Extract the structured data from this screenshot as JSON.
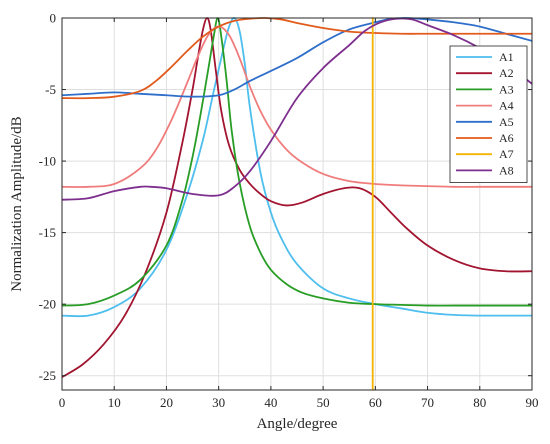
{
  "chart_data": {
    "type": "line",
    "title": "",
    "xlabel": "Angle/degree",
    "ylabel": "Normalization Amplitude/dB",
    "xlim": [
      0,
      90
    ],
    "ylim": [
      -26,
      0
    ],
    "xticks": [
      0,
      10,
      20,
      30,
      40,
      50,
      60,
      70,
      80,
      90
    ],
    "yticks": [
      0,
      -5,
      -10,
      -15,
      -20,
      -25
    ],
    "grid": true,
    "legend_position": "top-right",
    "series": [
      {
        "name": "A1",
        "color": "#4DBEEE",
        "x": [
          0,
          5,
          10,
          15,
          20,
          24,
          27,
          29,
          31,
          32,
          33,
          34,
          35,
          36,
          38,
          40,
          42,
          45,
          50,
          55,
          60,
          65,
          70,
          75,
          80,
          85,
          90
        ],
        "y": [
          -20.8,
          -20.8,
          -20.2,
          -18.9,
          -16.2,
          -12.3,
          -8.5,
          -5.2,
          -2.0,
          -0.6,
          0.0,
          -0.9,
          -3.2,
          -6.3,
          -10.8,
          -13.6,
          -15.4,
          -17.2,
          -18.9,
          -19.6,
          -20.0,
          -20.3,
          -20.6,
          -20.75,
          -20.8,
          -20.8,
          -20.8
        ]
      },
      {
        "name": "A2",
        "color": "#A2142F",
        "x": [
          0,
          4,
          8,
          12,
          16,
          20,
          23,
          25,
          26,
          27,
          27.8,
          28.5,
          29.5,
          30.5,
          32,
          34,
          36,
          38,
          40,
          43,
          46,
          50,
          54,
          57,
          60,
          63,
          66,
          70,
          75,
          80,
          85,
          90
        ],
        "y": [
          -25.1,
          -24.2,
          -22.8,
          -20.8,
          -17.8,
          -13.6,
          -8.8,
          -5.0,
          -2.8,
          -0.8,
          0.0,
          -0.9,
          -3.8,
          -6.5,
          -8.9,
          -10.6,
          -11.6,
          -12.3,
          -12.8,
          -13.1,
          -12.9,
          -12.3,
          -11.9,
          -11.9,
          -12.5,
          -13.6,
          -14.7,
          -15.9,
          -16.9,
          -17.5,
          -17.7,
          -17.7
        ]
      },
      {
        "name": "A3",
        "color": "#289D26",
        "x": [
          0,
          5,
          10,
          15,
          20,
          23,
          25,
          26.5,
          28,
          29,
          29.8,
          30.5,
          31.5,
          32.5,
          34,
          36,
          38,
          40,
          43,
          46,
          50,
          55,
          60,
          65,
          70,
          75,
          80,
          85,
          90
        ],
        "y": [
          -20.1,
          -20.0,
          -19.4,
          -18.3,
          -15.9,
          -12.8,
          -9.7,
          -6.8,
          -3.6,
          -1.4,
          0.0,
          -1.3,
          -4.3,
          -7.9,
          -11.5,
          -14.6,
          -16.4,
          -17.6,
          -18.6,
          -19.2,
          -19.6,
          -19.9,
          -20.0,
          -20.05,
          -20.1,
          -20.1,
          -20.1,
          -20.1,
          -20.1
        ]
      },
      {
        "name": "A4",
        "color": "#F07C7C",
        "x": [
          0,
          5,
          10,
          15,
          18,
          21,
          24,
          26,
          28,
          30,
          32,
          34,
          36,
          38,
          40,
          43,
          46,
          50,
          55,
          60,
          65,
          70,
          75,
          80,
          85,
          90
        ],
        "y": [
          -11.8,
          -11.8,
          -11.6,
          -10.5,
          -9.2,
          -7.1,
          -4.5,
          -2.7,
          -1.2,
          -0.6,
          -1.2,
          -2.8,
          -4.8,
          -6.5,
          -7.8,
          -9.2,
          -10.1,
          -10.9,
          -11.4,
          -11.6,
          -11.7,
          -11.75,
          -11.8,
          -11.8,
          -11.8,
          -11.8
        ]
      },
      {
        "name": "A5",
        "color": "#2F6FCA",
        "x": [
          0,
          5,
          10,
          15,
          20,
          25,
          30,
          33,
          36,
          40,
          45,
          50,
          55,
          60,
          63,
          66,
          70,
          75,
          80,
          85,
          90
        ],
        "y": [
          -5.4,
          -5.3,
          -5.2,
          -5.3,
          -5.4,
          -5.5,
          -5.4,
          -5.0,
          -4.4,
          -3.7,
          -2.8,
          -1.7,
          -0.8,
          -0.3,
          -0.05,
          0.0,
          -0.1,
          -0.3,
          -0.6,
          -1.1,
          -1.6
        ]
      },
      {
        "name": "A6",
        "color": "#E25A1C",
        "x": [
          0,
          5,
          10,
          15,
          18,
          21,
          24,
          27,
          30,
          33,
          36,
          39,
          42,
          45,
          50,
          55,
          60,
          65,
          70,
          75,
          80,
          85,
          90
        ],
        "y": [
          -5.6,
          -5.6,
          -5.5,
          -5.1,
          -4.4,
          -3.4,
          -2.3,
          -1.3,
          -0.6,
          -0.2,
          -0.05,
          0.0,
          -0.1,
          -0.35,
          -0.7,
          -0.95,
          -1.05,
          -1.1,
          -1.1,
          -1.1,
          -1.1,
          -1.1,
          -1.1
        ]
      },
      {
        "name": "A7",
        "color": "#F5B301",
        "x": [
          59.5,
          59.5
        ],
        "y": [
          0,
          -26
        ]
      },
      {
        "name": "A8",
        "color": "#7E2F8E",
        "x": [
          0,
          5,
          10,
          15,
          17,
          20,
          25,
          30,
          33,
          36,
          40,
          45,
          50,
          55,
          58,
          61,
          64,
          67,
          70,
          75,
          80,
          85,
          90
        ],
        "y": [
          -12.7,
          -12.6,
          -12.1,
          -11.8,
          -11.8,
          -11.9,
          -12.3,
          -12.4,
          -11.8,
          -10.7,
          -8.6,
          -5.6,
          -3.5,
          -1.9,
          -0.9,
          -0.3,
          -0.05,
          -0.1,
          -0.5,
          -1.2,
          -2.1,
          -3.2,
          -4.6
        ]
      }
    ]
  }
}
